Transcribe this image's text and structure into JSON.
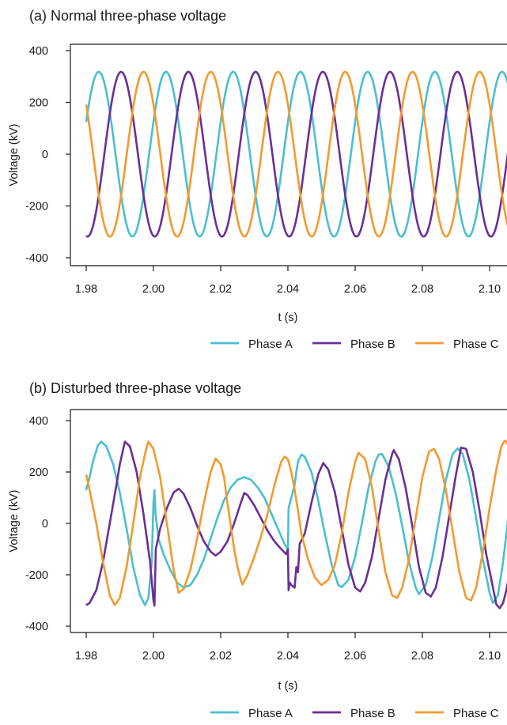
{
  "colors": {
    "phase_a": "#4bbfcf",
    "phase_b": "#6a2f94",
    "phase_c": "#f39a2f"
  },
  "chart_data": [
    {
      "type": "line",
      "title": "(a) Normal three-phase voltage",
      "xlabel": "t (s)",
      "ylabel": "Voltage (kV)",
      "xlim": [
        1.98,
        2.105
      ],
      "ylim": [
        -400,
        400
      ],
      "x_ticks": [
        "1.98",
        "2.00",
        "2.02",
        "2.04",
        "2.06",
        "2.08",
        "2.10"
      ],
      "y_ticks": [
        "400",
        "200",
        "0",
        "-200",
        "-400"
      ],
      "grid": false,
      "legend_position": "bottom-right",
      "frequency_hz": 50,
      "amplitude_kv": 318,
      "series": [
        {
          "name": "Phase A",
          "color": "#4bbfcf",
          "phase_deg": 23
        },
        {
          "name": "Phase B",
          "color": "#6a2f94",
          "phase_deg": -97
        },
        {
          "name": "Phase C",
          "color": "#f39a2f",
          "phase_deg": 143
        }
      ]
    },
    {
      "type": "line",
      "title": "(b) Disturbed three-phase voltage",
      "xlabel": "t (s)",
      "ylabel": "Voltage (kV)",
      "xlim": [
        1.98,
        2.105
      ],
      "ylim": [
        -400,
        400
      ],
      "x_ticks": [
        "1.98",
        "2.00",
        "2.02",
        "2.04",
        "2.06",
        "2.08",
        "2.10"
      ],
      "y_ticks": [
        "400",
        "200",
        "0",
        "-200",
        "-400"
      ],
      "grid": false,
      "legend_position": "bottom-right",
      "frequency_hz": 50,
      "series": [
        {
          "name": "Phase A",
          "color": "#4bbfcf",
          "points": [
            [
              1.98,
              130
            ],
            [
              1.981,
              180
            ],
            [
              1.982,
              240
            ],
            [
              1.9835,
              305
            ],
            [
              1.9845,
              318
            ],
            [
              1.986,
              300
            ],
            [
              1.988,
              230
            ],
            [
              1.99,
              120
            ],
            [
              1.992,
              -20
            ],
            [
              1.994,
              -170
            ],
            [
              1.996,
              -280
            ],
            [
              1.9975,
              -318
            ],
            [
              1.9985,
              -290
            ],
            [
              1.9995,
              -150
            ],
            [
              2.0,
              80
            ],
            [
              2.0003,
              130
            ],
            [
              2.0006,
              40
            ],
            [
              2.0015,
              -60
            ],
            [
              2.003,
              -120
            ],
            [
              2.005,
              -180
            ],
            [
              2.007,
              -230
            ],
            [
              2.009,
              -250
            ],
            [
              2.011,
              -240
            ],
            [
              2.013,
              -200
            ],
            [
              2.015,
              -140
            ],
            [
              2.017,
              -60
            ],
            [
              2.019,
              20
            ],
            [
              2.021,
              90
            ],
            [
              2.023,
              140
            ],
            [
              2.025,
              170
            ],
            [
              2.027,
              180
            ],
            [
              2.029,
              170
            ],
            [
              2.031,
              140
            ],
            [
              2.033,
              100
            ],
            [
              2.035,
              40
            ],
            [
              2.037,
              -20
            ],
            [
              2.039,
              -80
            ],
            [
              2.04,
              -100
            ],
            [
              2.0402,
              60
            ],
            [
              2.041,
              100
            ],
            [
              2.042,
              150
            ],
            [
              2.0425,
              200
            ],
            [
              2.043,
              240
            ],
            [
              2.044,
              268
            ],
            [
              2.045,
              260
            ],
            [
              2.047,
              200
            ],
            [
              2.049,
              90
            ],
            [
              2.051,
              -40
            ],
            [
              2.053,
              -160
            ],
            [
              2.055,
              -240
            ],
            [
              2.056,
              -248
            ],
            [
              2.058,
              -220
            ],
            [
              2.06,
              -130
            ],
            [
              2.062,
              0
            ],
            [
              2.064,
              140
            ],
            [
              2.066,
              240
            ],
            [
              2.067,
              268
            ],
            [
              2.068,
              270
            ],
            [
              2.07,
              220
            ],
            [
              2.072,
              120
            ],
            [
              2.074,
              -10
            ],
            [
              2.076,
              -150
            ],
            [
              2.078,
              -250
            ],
            [
              2.079,
              -275
            ],
            [
              2.081,
              -240
            ],
            [
              2.083,
              -130
            ],
            [
              2.085,
              20
            ],
            [
              2.087,
              170
            ],
            [
              2.089,
              270
            ],
            [
              2.0905,
              292
            ],
            [
              2.092,
              270
            ],
            [
              2.094,
              170
            ],
            [
              2.096,
              20
            ],
            [
              2.098,
              -140
            ],
            [
              2.1,
              -270
            ],
            [
              2.101,
              -310
            ],
            [
              2.1025,
              -280
            ],
            [
              2.104,
              -150
            ],
            [
              2.105,
              -40
            ],
            [
              2.106,
              80
            ],
            [
              2.108,
              240
            ],
            [
              2.1095,
              330
            ],
            [
              2.111,
              335
            ]
          ]
        },
        {
          "name": "Phase B",
          "color": "#6a2f94",
          "points": [
            [
              1.98,
              -318
            ],
            [
              1.981,
              -310
            ],
            [
              1.983,
              -260
            ],
            [
              1.985,
              -150
            ],
            [
              1.987,
              0
            ],
            [
              1.989,
              150
            ],
            [
              1.99,
              230
            ],
            [
              1.9915,
              318
            ],
            [
              1.993,
              300
            ],
            [
              1.995,
              200
            ],
            [
              1.997,
              40
            ],
            [
              1.999,
              -150
            ],
            [
              2.0,
              -300
            ],
            [
              2.0003,
              -320
            ],
            [
              2.0007,
              -100
            ],
            [
              2.002,
              -20
            ],
            [
              2.004,
              60
            ],
            [
              2.006,
              120
            ],
            [
              2.0075,
              135
            ],
            [
              2.009,
              115
            ],
            [
              2.011,
              60
            ],
            [
              2.013,
              -10
            ],
            [
              2.015,
              -70
            ],
            [
              2.017,
              -110
            ],
            [
              2.0185,
              -125
            ],
            [
              2.02,
              -110
            ],
            [
              2.022,
              -70
            ],
            [
              2.024,
              0
            ],
            [
              2.026,
              80
            ],
            [
              2.027,
              118
            ],
            [
              2.028,
              110
            ],
            [
              2.03,
              70
            ],
            [
              2.032,
              20
            ],
            [
              2.034,
              -30
            ],
            [
              2.036,
              -70
            ],
            [
              2.038,
              -100
            ],
            [
              2.0395,
              -120
            ],
            [
              2.04,
              -100
            ],
            [
              2.0402,
              -260
            ],
            [
              2.0405,
              -230
            ],
            [
              2.041,
              -240
            ],
            [
              2.042,
              -250
            ],
            [
              2.0425,
              -170
            ],
            [
              2.043,
              -190
            ],
            [
              2.0435,
              -80
            ],
            [
              2.045,
              -40
            ],
            [
              2.047,
              80
            ],
            [
              2.049,
              190
            ],
            [
              2.0505,
              235
            ],
            [
              2.052,
              210
            ],
            [
              2.054,
              120
            ],
            [
              2.056,
              -20
            ],
            [
              2.058,
              -160
            ],
            [
              2.06,
              -250
            ],
            [
              2.0615,
              -265
            ],
            [
              2.063,
              -230
            ],
            [
              2.065,
              -130
            ],
            [
              2.067,
              20
            ],
            [
              2.069,
              170
            ],
            [
              2.071,
              270
            ],
            [
              2.0715,
              285
            ],
            [
              2.073,
              250
            ],
            [
              2.075,
              140
            ],
            [
              2.077,
              -10
            ],
            [
              2.079,
              -170
            ],
            [
              2.081,
              -270
            ],
            [
              2.0825,
              -285
            ],
            [
              2.084,
              -250
            ],
            [
              2.086,
              -130
            ],
            [
              2.088,
              30
            ],
            [
              2.09,
              190
            ],
            [
              2.0915,
              295
            ],
            [
              2.093,
              290
            ],
            [
              2.095,
              200
            ],
            [
              2.097,
              50
            ],
            [
              2.099,
              -120
            ],
            [
              2.101,
              -250
            ],
            [
              2.102,
              -315
            ],
            [
              2.103,
              -330
            ],
            [
              2.104,
              -310
            ],
            [
              2.105,
              -260
            ],
            [
              2.106,
              -190
            ]
          ]
        },
        {
          "name": "Phase C",
          "color": "#f39a2f",
          "points": [
            [
              1.98,
              190
            ],
            [
              1.981,
              130
            ],
            [
              1.983,
              0
            ],
            [
              1.985,
              -150
            ],
            [
              1.987,
              -280
            ],
            [
              1.9885,
              -318
            ],
            [
              1.99,
              -290
            ],
            [
              1.992,
              -170
            ],
            [
              1.994,
              0
            ],
            [
              1.996,
              180
            ],
            [
              1.998,
              300
            ],
            [
              1.9985,
              318
            ],
            [
              2.0,
              290
            ],
            [
              2.002,
              180
            ],
            [
              2.004,
              0
            ],
            [
              2.006,
              -180
            ],
            [
              2.0075,
              -270
            ],
            [
              2.009,
              -255
            ],
            [
              2.011,
              -180
            ],
            [
              2.013,
              -60
            ],
            [
              2.015,
              80
            ],
            [
              2.017,
              200
            ],
            [
              2.0185,
              252
            ],
            [
              2.02,
              230
            ],
            [
              2.021,
              180
            ],
            [
              2.022,
              80
            ],
            [
              2.023,
              -10
            ],
            [
              2.024,
              -100
            ],
            [
              2.025,
              -170
            ],
            [
              2.026,
              -220
            ],
            [
              2.0265,
              -238
            ],
            [
              2.028,
              -200
            ],
            [
              2.03,
              -130
            ],
            [
              2.032,
              -50
            ],
            [
              2.034,
              40
            ],
            [
              2.036,
              150
            ],
            [
              2.038,
              240
            ],
            [
              2.039,
              260
            ],
            [
              2.04,
              250
            ],
            [
              2.041,
              200
            ],
            [
              2.042,
              130
            ],
            [
              2.043,
              50
            ],
            [
              2.044,
              -40
            ],
            [
              2.046,
              -140
            ],
            [
              2.048,
              -210
            ],
            [
              2.05,
              -240
            ],
            [
              2.052,
              -220
            ],
            [
              2.054,
              -160
            ],
            [
              2.056,
              -40
            ],
            [
              2.058,
              120
            ],
            [
              2.06,
              240
            ],
            [
              2.061,
              275
            ],
            [
              2.063,
              250
            ],
            [
              2.065,
              140
            ],
            [
              2.067,
              -30
            ],
            [
              2.069,
              -190
            ],
            [
              2.071,
              -280
            ],
            [
              2.0725,
              -290
            ],
            [
              2.074,
              -250
            ],
            [
              2.076,
              -140
            ],
            [
              2.078,
              20
            ],
            [
              2.08,
              180
            ],
            [
              2.082,
              280
            ],
            [
              2.0835,
              290
            ],
            [
              2.085,
              250
            ],
            [
              2.087,
              130
            ],
            [
              2.089,
              -30
            ],
            [
              2.091,
              -190
            ],
            [
              2.093,
              -290
            ],
            [
              2.0945,
              -300
            ],
            [
              2.096,
              -250
            ],
            [
              2.098,
              -110
            ],
            [
              2.1,
              60
            ],
            [
              2.102,
              210
            ],
            [
              2.1035,
              300
            ],
            [
              2.1045,
              322
            ],
            [
              2.105,
              318
            ],
            [
              2.106,
              290
            ],
            [
              2.107,
              240
            ]
          ]
        }
      ]
    }
  ]
}
